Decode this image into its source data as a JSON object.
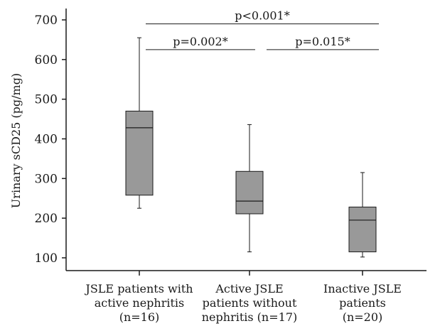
{
  "chart_data": {
    "type": "box",
    "title": "",
    "xlabel": "",
    "ylabel": "Urinary sCD25 (pg/mg)",
    "ylim": [
      80,
      720
    ],
    "yticks": [
      "100",
      "200",
      "300",
      "400",
      "500",
      "600",
      "700"
    ],
    "grid": false,
    "colors": {
      "box_fill": "#999999",
      "stroke": "#1a1a1a"
    },
    "groups": [
      {
        "label_lines": [
          "JSLE patients with",
          "active nephritis",
          "(n=16)"
        ],
        "min": 225,
        "q1": 258,
        "median": 428,
        "q3": 470,
        "max": 655
      },
      {
        "label_lines": [
          "Active JSLE",
          "patients without",
          "nephritis (n=17)"
        ],
        "min": 115,
        "q1": 211,
        "median": 243,
        "q3": 318,
        "max": 436
      },
      {
        "label_lines": [
          "Inactive JSLE",
          "patients",
          "(n=20)"
        ],
        "min": 102,
        "q1": 115,
        "median": 195,
        "q3": 228,
        "max": 315
      }
    ],
    "significance": [
      {
        "from": 0,
        "to": 1,
        "label": "p=0.002*",
        "level_value": 625
      },
      {
        "from": 1,
        "to": 2,
        "label": "p=0.015*",
        "level_value": 625
      },
      {
        "from": 0,
        "to": 2,
        "label": "p<0.001*",
        "level_value": 690
      }
    ]
  }
}
